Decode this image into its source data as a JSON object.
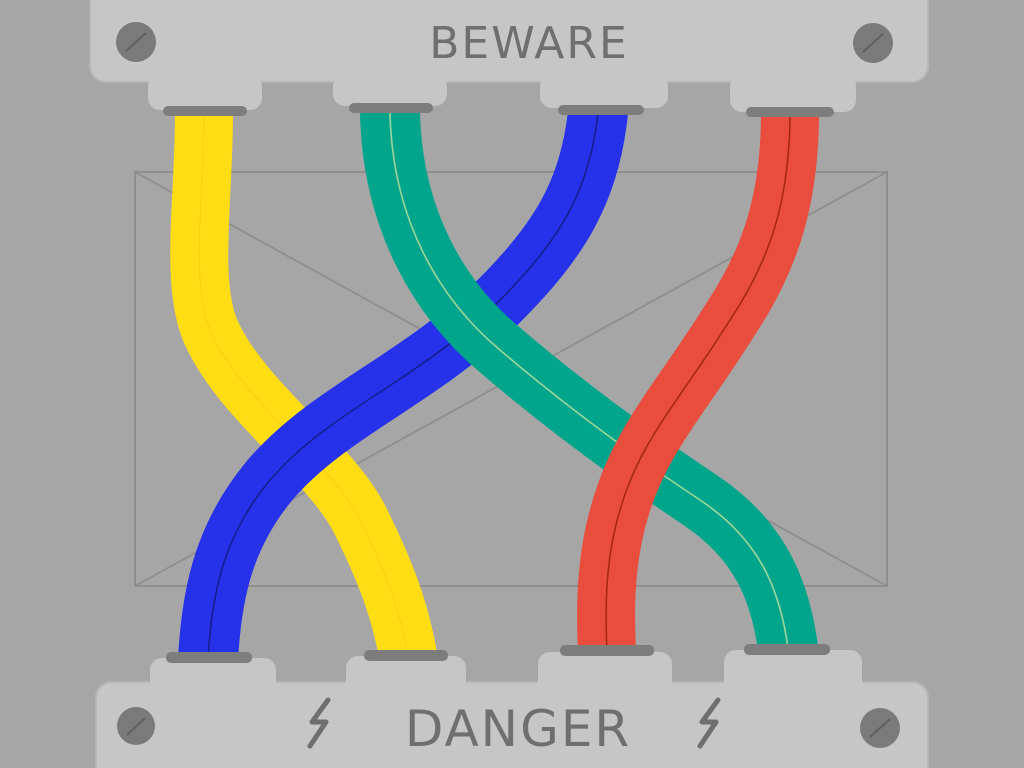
{
  "top_plate": {
    "label": "BEWARE"
  },
  "bottom_plate": {
    "label": "DANGER",
    "warning_glyph": "ϟ"
  },
  "wires": [
    {
      "name": "yellow-wire",
      "color": "#ffdd15",
      "core": "#f2ce10",
      "top_slot": 1,
      "bottom_slot": 2
    },
    {
      "name": "green-wire",
      "color": "#00a58c",
      "core": "#9fd59a",
      "top_slot": 2,
      "bottom_slot": 4
    },
    {
      "name": "blue-wire",
      "color": "#2532ea",
      "core": "#161f8e",
      "top_slot": 3,
      "bottom_slot": 1
    },
    {
      "name": "red-wire",
      "color": "#e84d3d",
      "core": "#a42615",
      "top_slot": 4,
      "bottom_slot": 3
    }
  ],
  "colors": {
    "background": "#a6a6a6",
    "plate": "#c6c6c6",
    "plate_edge": "#b8b8b8",
    "screw": "#7a7a7a",
    "ring": "#7d7d7d",
    "frame_line": "#8e8e8e",
    "text": "#6f6f6f"
  }
}
